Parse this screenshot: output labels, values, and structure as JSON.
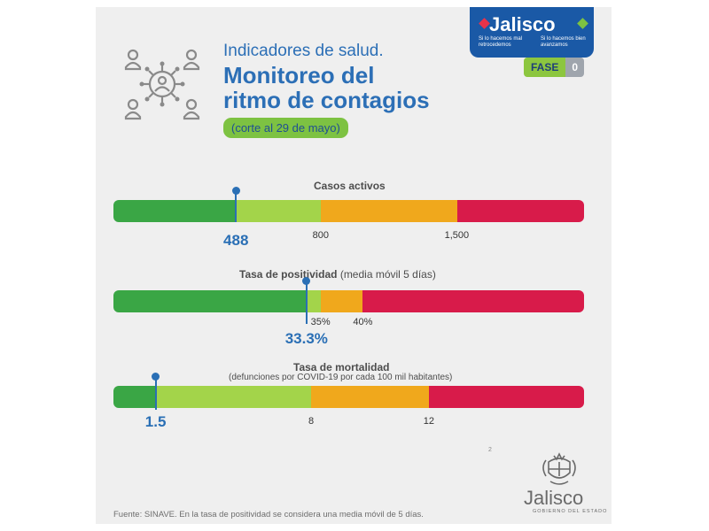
{
  "header": {
    "subtitle": "Indicadores de salud.",
    "title_line1": "Monitoreo del",
    "title_line2": "ritmo de contagios",
    "date_note": "(corte al 29 de mayo)",
    "icon": "people-network-icon"
  },
  "brand": {
    "name": "Jalisco",
    "slogan_left": "Si lo hacemos mal retrocedemos",
    "slogan_right": "Si lo hacemos bien avanzamos"
  },
  "phase": {
    "label": "FASE",
    "value": "0"
  },
  "colors": {
    "green_dark": "#3aa645",
    "green_light": "#a3d44a",
    "orange": "#f0a81c",
    "red": "#d81b4a",
    "blue": "#2a6fb5"
  },
  "indicators": [
    {
      "title": "Casos activos",
      "note": "",
      "value_label": "488",
      "value_fraction": 0.26,
      "thresholds": [
        {
          "label": "800",
          "fraction": 0.44
        },
        {
          "label": "1,500",
          "fraction": 0.73
        }
      ]
    },
    {
      "title": "Tasa de positividad",
      "note": " (media móvil 5 días)",
      "value_label": "33.3%",
      "value_fraction": 0.41,
      "thresholds": [
        {
          "label": "35%",
          "fraction": 0.44
        },
        {
          "label": "40%",
          "fraction": 0.53
        }
      ]
    },
    {
      "title": "Tasa de mortalidad",
      "note": "",
      "subtitle": "(defunciones por COVID-19 por cada 100 mil habitantes)",
      "value_label": "1.5",
      "value_fraction": 0.09,
      "thresholds": [
        {
          "label": "8",
          "fraction": 0.42
        },
        {
          "label": "12",
          "fraction": 0.67
        }
      ]
    }
  ],
  "footer": {
    "source": "Fuente: SINAVE. En la tasa de positividad se considera una media móvil de 5 días.",
    "small_mark": "2",
    "gov_name": "Jalisco",
    "gov_sub": "GOBIERNO DEL ESTADO",
    "crest_icon": "state-crest-icon"
  }
}
